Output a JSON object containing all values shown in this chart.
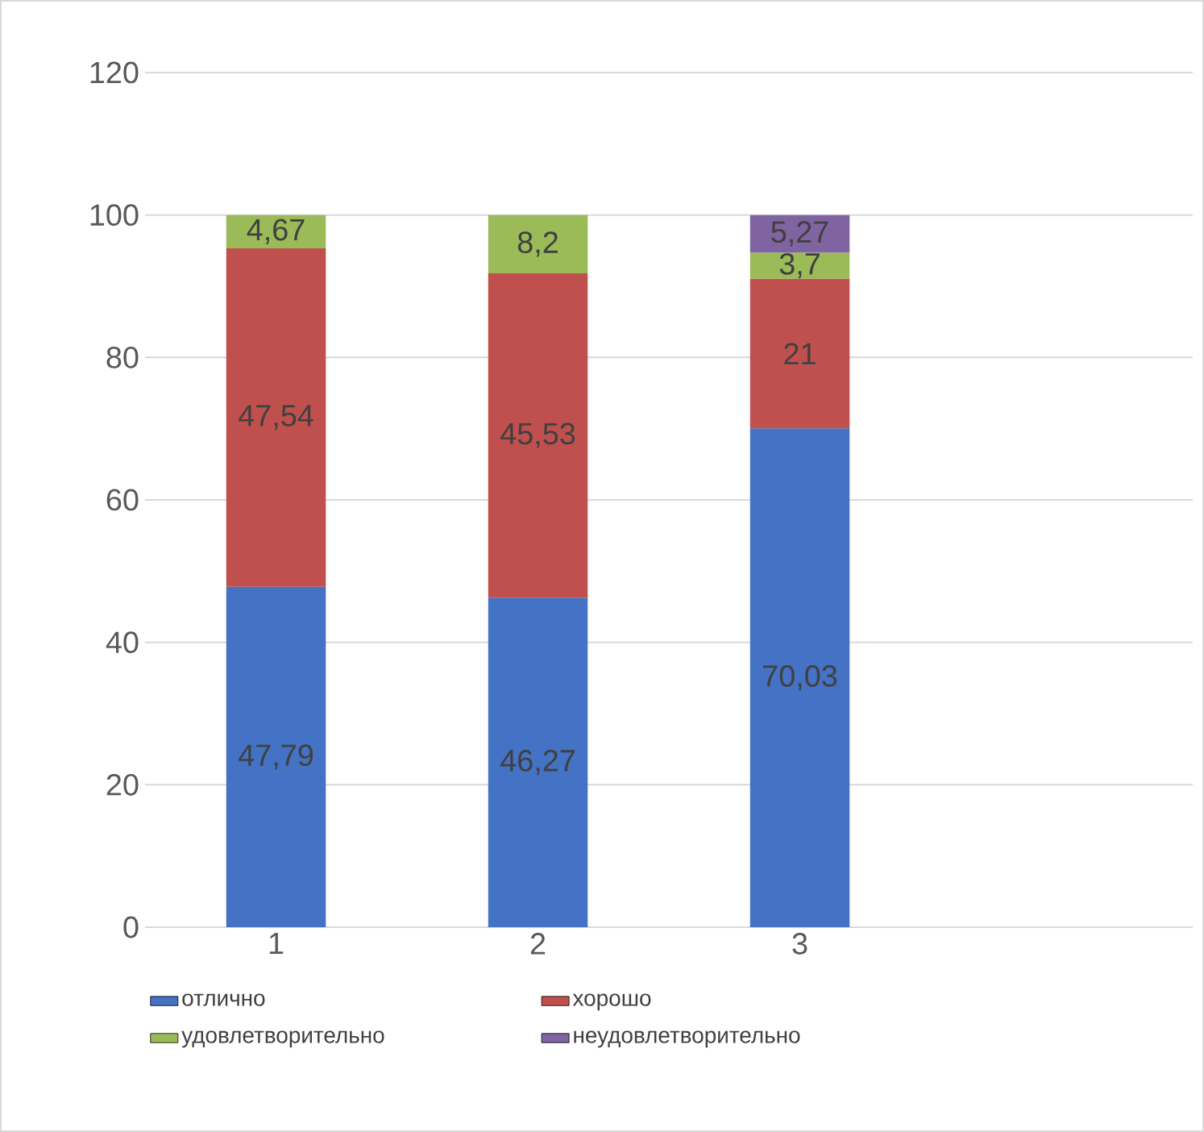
{
  "chart_data": {
    "type": "bar",
    "stacked": true,
    "categories": [
      "1",
      "2",
      "3",
      null
    ],
    "series": [
      {
        "name": "отлично",
        "color": "#4472c4",
        "values": [
          47.79,
          46.27,
          70.03,
          null
        ],
        "value_labels": [
          "47,79",
          "46,27",
          "70,03",
          null
        ]
      },
      {
        "name": "хорошо",
        "color": "#c0504d",
        "values": [
          47.54,
          45.53,
          21,
          null
        ],
        "value_labels": [
          "47,54",
          "45,53",
          "21",
          null
        ]
      },
      {
        "name": "удовлетворительно",
        "color": "#9bbb59",
        "values": [
          4.67,
          8.2,
          3.7,
          null
        ],
        "value_labels": [
          "4,67",
          "8,2",
          "3,7",
          null
        ]
      },
      {
        "name": "неудовлетворительно",
        "color": "#8064a2",
        "values": [
          null,
          null,
          5.27,
          null
        ],
        "value_labels": [
          null,
          null,
          "5,27",
          null
        ]
      }
    ],
    "ylim": [
      0,
      120
    ],
    "yticks": [
      0,
      20,
      40,
      60,
      80,
      100,
      120
    ],
    "grid": "y",
    "legend": "bottom"
  }
}
